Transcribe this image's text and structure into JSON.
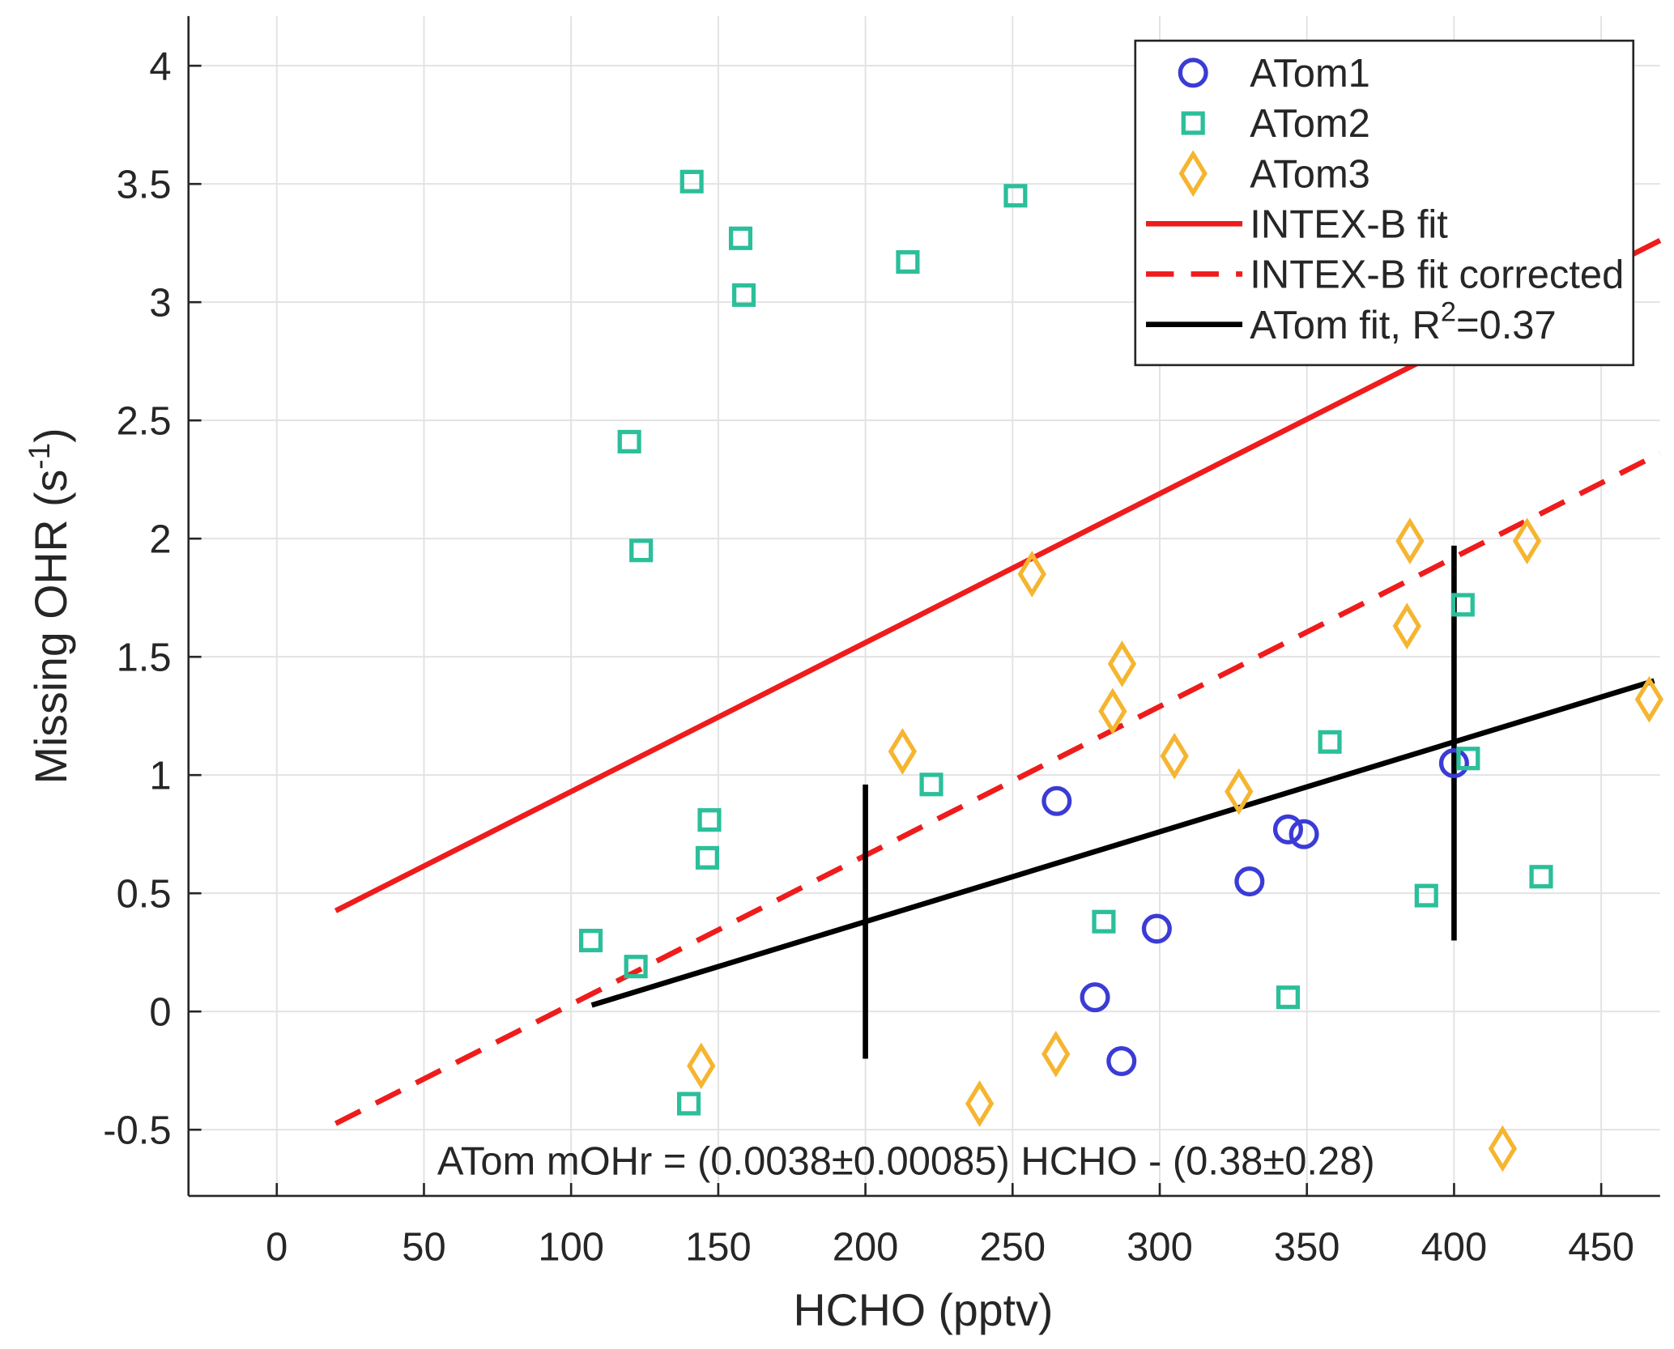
{
  "chart_data": {
    "type": "scatter",
    "xlabel": "HCHO (pptv)",
    "ylabel": "Missing OHR (s",
    "ylabel_sup": "-1",
    "ylabel_end": ")",
    "xlim": [
      -30,
      470
    ],
    "ylim": [
      -0.78,
      4.21
    ],
    "xticks": [
      0,
      50,
      100,
      150,
      200,
      250,
      300,
      350,
      400,
      450
    ],
    "xtick_labels": [
      "0",
      "50",
      "100",
      "150",
      "200",
      "250",
      "300",
      "350",
      "400",
      "450"
    ],
    "yticks": [
      -0.5,
      0,
      0.5,
      1,
      1.5,
      2,
      2.5,
      3,
      3.5,
      4
    ],
    "ytick_labels": [
      "-0.5",
      "0",
      "0.5",
      "1",
      "1.5",
      "2",
      "2.5",
      "3",
      "3.5",
      "4"
    ],
    "grid": true,
    "legend_position": "top-right",
    "annotation": "ATom mOHr = (0.0038±0.00085) HCHO - (0.38±0.28)",
    "series": [
      {
        "name": "ATom1",
        "marker": "circle",
        "color": "#3b3bd6",
        "points": [
          [
            265,
            0.89
          ],
          [
            278,
            0.06
          ],
          [
            287,
            -0.21
          ],
          [
            299,
            0.35
          ],
          [
            330.5,
            0.55
          ],
          [
            343.6,
            0.77
          ],
          [
            349,
            0.75
          ],
          [
            400,
            1.05
          ]
        ]
      },
      {
        "name": "ATom2",
        "marker": "square",
        "color": "#2bbf9a",
        "points": [
          [
            141,
            3.51
          ],
          [
            157.6,
            3.27
          ],
          [
            158.7,
            3.03
          ],
          [
            214.4,
            3.17
          ],
          [
            251,
            3.45
          ],
          [
            119.8,
            2.41
          ],
          [
            123.8,
            1.95
          ],
          [
            147,
            0.81
          ],
          [
            146.3,
            0.65
          ],
          [
            106.7,
            0.3
          ],
          [
            122,
            0.19
          ],
          [
            140,
            -0.39
          ],
          [
            222.4,
            0.96
          ],
          [
            281,
            0.38
          ],
          [
            343.6,
            0.06
          ],
          [
            357.8,
            1.14
          ],
          [
            403,
            1.72
          ],
          [
            404.8,
            1.07
          ],
          [
            390.6,
            0.49
          ],
          [
            429.6,
            0.57
          ]
        ]
      },
      {
        "name": "ATom3",
        "marker": "diamond",
        "color": "#f5b530",
        "points": [
          [
            256.6,
            1.85
          ],
          [
            212.6,
            1.1
          ],
          [
            287.2,
            1.47
          ],
          [
            284,
            1.27
          ],
          [
            305,
            1.08
          ],
          [
            326.9,
            0.93
          ],
          [
            385,
            1.99
          ],
          [
            384,
            1.63
          ],
          [
            424.8,
            1.99
          ],
          [
            466.3,
            1.32
          ],
          [
            144.2,
            -0.23
          ],
          [
            264.7,
            -0.18
          ],
          [
            238.8,
            -0.39
          ],
          [
            416.5,
            -0.58
          ]
        ]
      }
    ],
    "lines": [
      {
        "name": "INTEX-B fit",
        "color": "#ee1c1c",
        "dash": false,
        "slope": 0.0063,
        "intercept": 0.3,
        "x": [
          20,
          470
        ]
      },
      {
        "name": "INTEX-B fit corrected",
        "color": "#ee1c1c",
        "dash": true,
        "slope": 0.0063,
        "intercept": -0.6,
        "x": [
          20,
          470
        ]
      },
      {
        "name": "ATom fit, R",
        "name_sup": "2",
        "name_end": "=0.37",
        "color": "#000000",
        "dash": false,
        "slope": 0.0038,
        "intercept": -0.38,
        "x": [
          107,
          468
        ]
      }
    ],
    "error_bars": [
      {
        "x": 200,
        "y_low": -0.2,
        "y_high": 0.96
      },
      {
        "x": 400,
        "y_low": 0.3,
        "y_high": 1.97
      }
    ]
  }
}
